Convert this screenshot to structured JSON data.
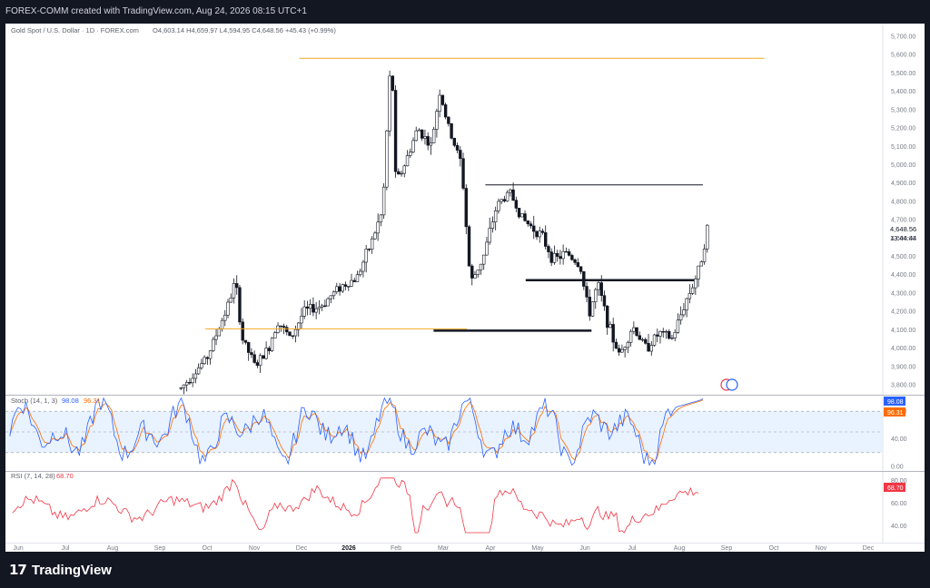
{
  "header": {
    "attribution": "FOREX-COMM created with TradingView.com, Aug 24, 2026 08:15 UTC+1",
    "instrument": "Gold Spot / U.S. Dollar · 1D · FOREX.com",
    "ohlc": "O4,603.14  H4,659.97  L4,594.95  C4,648.56  +45.43 (+0.99%)"
  },
  "footer": {
    "logo": "17",
    "brand": "TradingView"
  },
  "chart_data": {
    "type": "candlestick",
    "price_axis": {
      "ticks": [
        "5,700.00",
        "5,600.00",
        "5,500.00",
        "5,400.00",
        "5,300.00",
        "5,200.00",
        "5,100.00",
        "5,000.00",
        "4,900.00",
        "4,800.00",
        "4,700.00",
        "4,600.00",
        "4,500.00",
        "4,400.00",
        "4,300.00",
        "4,200.00",
        "4,100.00",
        "4,000.00",
        "3,900.00",
        "3,800.00"
      ],
      "current_price": "4,648.56",
      "countdown": "13:44:44"
    },
    "x_axis": {
      "labels": [
        "Jun",
        "Jul",
        "Aug",
        "Sep",
        "Oct",
        "Nov",
        "Dec",
        "2026",
        "Feb",
        "Mar",
        "Apr",
        "May",
        "Jun",
        "Jul",
        "Aug",
        "Sep",
        "Oct",
        "Nov",
        "Dec"
      ]
    },
    "price_path": [
      [
        0.2,
        3780
      ],
      [
        0.23,
        3950
      ],
      [
        0.255,
        4250
      ],
      [
        0.262,
        4370
      ],
      [
        0.27,
        4050
      ],
      [
        0.285,
        3900
      ],
      [
        0.3,
        4000
      ],
      [
        0.31,
        4150
      ],
      [
        0.325,
        4050
      ],
      [
        0.34,
        4200
      ],
      [
        0.36,
        4230
      ],
      [
        0.38,
        4330
      ],
      [
        0.4,
        4380
      ],
      [
        0.415,
        4550
      ],
      [
        0.43,
        4750
      ],
      [
        0.437,
        5400
      ],
      [
        0.44,
        5600
      ],
      [
        0.445,
        4900
      ],
      [
        0.455,
        5000
      ],
      [
        0.47,
        5200
      ],
      [
        0.485,
        5100
      ],
      [
        0.495,
        5400
      ],
      [
        0.505,
        5200
      ],
      [
        0.52,
        5000
      ],
      [
        0.53,
        4350
      ],
      [
        0.545,
        4500
      ],
      [
        0.56,
        4780
      ],
      [
        0.575,
        4850
      ],
      [
        0.59,
        4700
      ],
      [
        0.61,
        4620
      ],
      [
        0.625,
        4480
      ],
      [
        0.64,
        4520
      ],
      [
        0.655,
        4450
      ],
      [
        0.665,
        4180
      ],
      [
        0.675,
        4350
      ],
      [
        0.69,
        4080
      ],
      [
        0.7,
        3960
      ],
      [
        0.715,
        4120
      ],
      [
        0.73,
        4000
      ],
      [
        0.745,
        4080
      ],
      [
        0.76,
        4050
      ],
      [
        0.775,
        4250
      ],
      [
        0.79,
        4420
      ],
      [
        0.8,
        4650
      ]
    ],
    "levels": [
      {
        "price": 5580,
        "from": 0.335,
        "to": 0.865,
        "color": "#f5a623",
        "width": 1
      },
      {
        "price": 4890,
        "from": 0.547,
        "to": 0.795,
        "color": "#131722",
        "width": 1
      },
      {
        "price": 4370,
        "from": 0.593,
        "to": 0.785,
        "color": "#131722",
        "width": 2.5
      },
      {
        "price": 4105,
        "from": 0.228,
        "to": 0.526,
        "color": "#f5a623",
        "width": 1
      },
      {
        "price": 4095,
        "from": 0.488,
        "to": 0.668,
        "color": "#131722",
        "width": 2.5
      }
    ],
    "stochastic": {
      "title": "Stoch (14, 1, 3)",
      "k_label": "98.08",
      "d_label": "96.31",
      "k_value": 98.08,
      "d_value": 96.31,
      "k_color": "#2962ff",
      "d_color": "#ff6d00",
      "ticks": [
        "80.00",
        "40.00",
        "0.00"
      ],
      "bands": [
        20,
        80
      ]
    },
    "rsi": {
      "title": "RSI (7, 14, 28)",
      "value_label": "68.70",
      "value": 68.7,
      "color": "#f23645",
      "ticks": [
        "80.00",
        "60.00",
        "40.00"
      ]
    }
  }
}
